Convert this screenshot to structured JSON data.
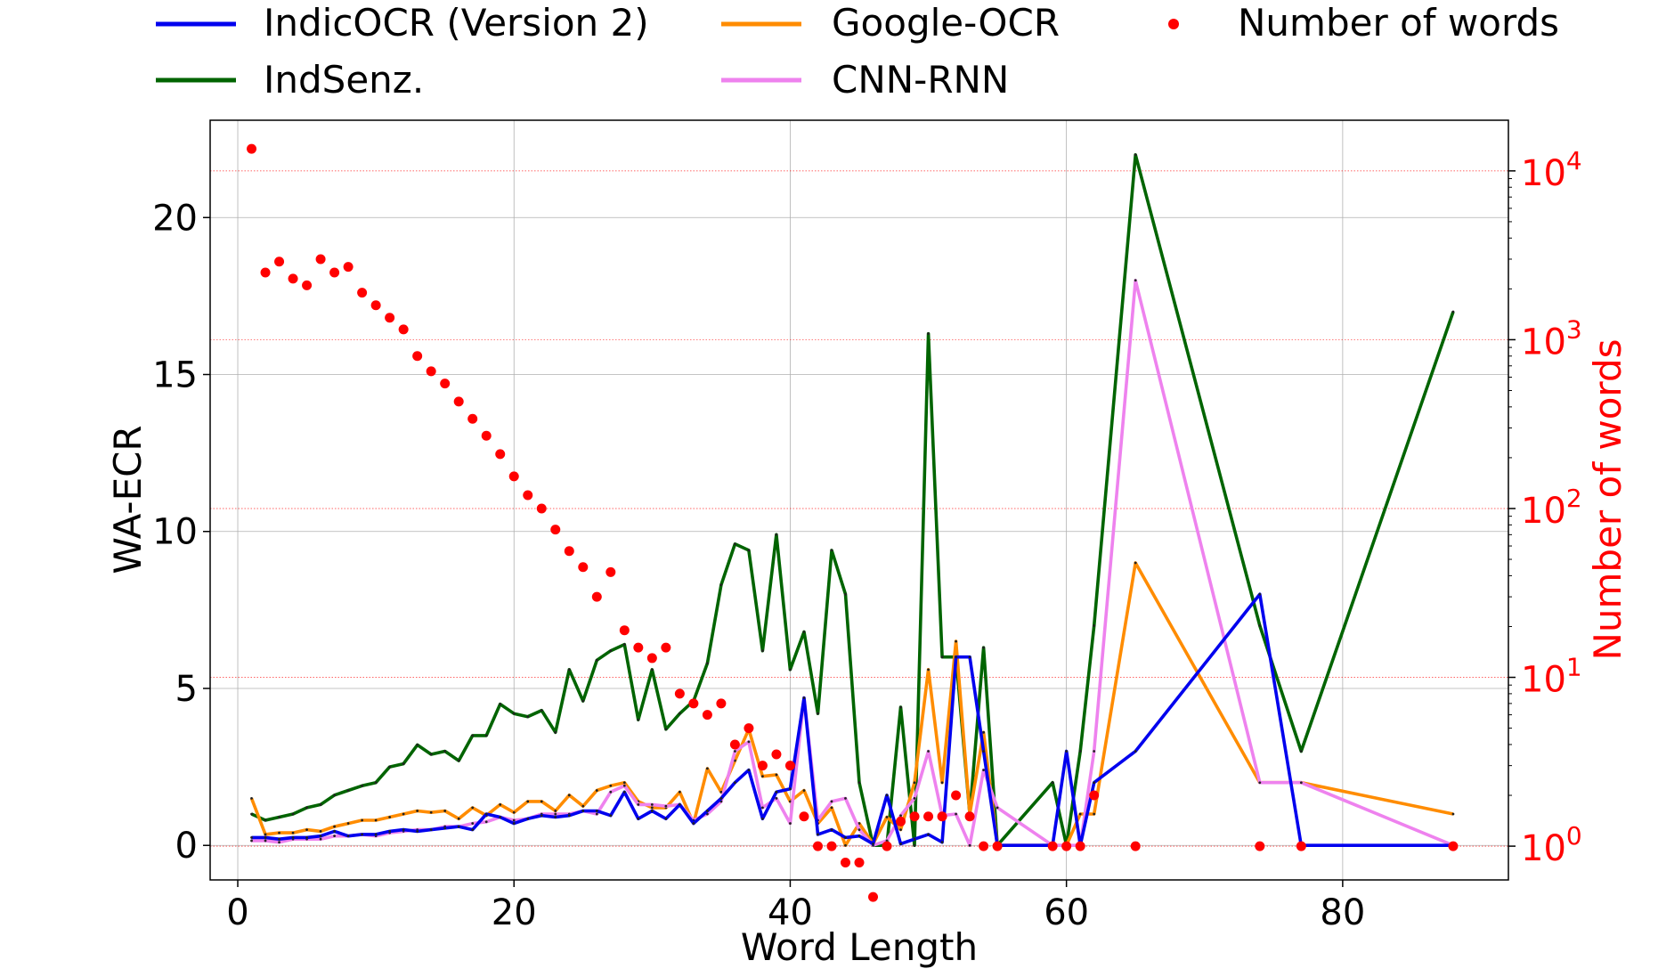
{
  "chart_data": {
    "type": "line",
    "title": "",
    "xlabel": "Word Length",
    "ylabel": "WA-ECR",
    "y2label": "Number of words",
    "xlim": [
      -2,
      92
    ],
    "ylim": [
      -1.1,
      23.1
    ],
    "y2lim_log10": [
      -0.2,
      4.3
    ],
    "y2scale": "log",
    "x_ticks": [
      "0",
      "20",
      "40",
      "60",
      "80"
    ],
    "x_tick_values": [
      0,
      20,
      40,
      60,
      80
    ],
    "y_ticks": [
      "0",
      "5",
      "10",
      "15",
      "20"
    ],
    "y_tick_values": [
      0,
      5,
      10,
      15,
      20
    ],
    "y2_ticks": [
      "10",
      "10",
      "10",
      "10",
      "10"
    ],
    "y2_tick_exponents": [
      "0",
      "1",
      "2",
      "3",
      "4"
    ],
    "y2_tick_values": [
      0,
      1,
      2,
      3,
      4
    ],
    "grid": true,
    "legend_position": "top",
    "series": [
      {
        "name": "IndicOCR (Version 2)",
        "color": "#0000ee",
        "axis": "left",
        "x": [
          1,
          2,
          3,
          4,
          5,
          6,
          7,
          8,
          9,
          10,
          11,
          12,
          13,
          14,
          15,
          16,
          17,
          18,
          19,
          20,
          21,
          22,
          23,
          24,
          25,
          26,
          27,
          28,
          29,
          30,
          31,
          32,
          33,
          34,
          35,
          36,
          37,
          38,
          39,
          40,
          41,
          42,
          43,
          44,
          45,
          46,
          47,
          48,
          49,
          50,
          51,
          52,
          53,
          54,
          55,
          59,
          60,
          61,
          62,
          65,
          74,
          77,
          88
        ],
        "y": [
          0.25,
          0.25,
          0.2,
          0.25,
          0.25,
          0.3,
          0.45,
          0.3,
          0.35,
          0.35,
          0.45,
          0.5,
          0.45,
          0.5,
          0.55,
          0.6,
          0.5,
          1.0,
          0.9,
          0.7,
          0.85,
          0.95,
          0.9,
          0.95,
          1.1,
          1.1,
          0.95,
          1.7,
          0.85,
          1.1,
          0.85,
          1.3,
          0.7,
          1.1,
          1.5,
          2.0,
          2.4,
          0.85,
          1.7,
          1.8,
          4.7,
          0.35,
          0.5,
          0.25,
          0.3,
          0.05,
          1.6,
          0.05,
          0.2,
          0.35,
          0.1,
          6.0,
          6.0,
          3.0,
          0.0,
          0.0,
          3.0,
          0.0,
          2.0,
          3.0,
          8.0,
          0.0,
          0.0
        ]
      },
      {
        "name": "IndSenz.",
        "color": "#006400",
        "axis": "left",
        "x": [
          1,
          2,
          3,
          4,
          5,
          6,
          7,
          8,
          9,
          10,
          11,
          12,
          13,
          14,
          15,
          16,
          17,
          18,
          19,
          20,
          21,
          22,
          23,
          24,
          25,
          26,
          27,
          28,
          29,
          30,
          31,
          32,
          33,
          34,
          35,
          36,
          37,
          38,
          39,
          40,
          41,
          42,
          43,
          44,
          45,
          46,
          47,
          48,
          49,
          50,
          51,
          52,
          53,
          54,
          55,
          59,
          60,
          61,
          62,
          65,
          74,
          77,
          88
        ],
        "y": [
          1.0,
          0.8,
          0.9,
          1.0,
          1.2,
          1.3,
          1.6,
          1.75,
          1.9,
          2.0,
          2.5,
          2.6,
          3.2,
          2.9,
          3.0,
          2.7,
          3.5,
          3.5,
          4.5,
          4.2,
          4.1,
          4.3,
          3.6,
          5.6,
          4.6,
          5.9,
          6.2,
          6.4,
          4.0,
          5.6,
          3.7,
          4.2,
          4.6,
          5.8,
          8.3,
          9.6,
          9.4,
          6.2,
          9.9,
          5.6,
          6.8,
          4.2,
          9.4,
          8.0,
          2.0,
          0.0,
          0.0,
          4.4,
          0.0,
          16.3,
          6.0,
          6.0,
          1.0,
          6.3,
          0.0,
          2.0,
          0.0,
          3.0,
          7.0,
          22.0,
          7.0,
          3.0,
          17.0
        ]
      },
      {
        "name": "Google-OCR",
        "color": "#ff8c00",
        "axis": "left",
        "x": [
          1,
          2,
          3,
          4,
          5,
          6,
          7,
          8,
          9,
          10,
          11,
          12,
          13,
          14,
          15,
          16,
          17,
          18,
          19,
          20,
          21,
          22,
          23,
          24,
          25,
          26,
          27,
          28,
          29,
          30,
          31,
          32,
          33,
          34,
          35,
          36,
          37,
          38,
          39,
          40,
          41,
          42,
          43,
          44,
          45,
          46,
          47,
          48,
          49,
          50,
          51,
          52,
          53,
          54,
          55,
          59,
          60,
          61,
          62,
          65,
          74,
          77,
          88
        ],
        "y": [
          1.5,
          0.35,
          0.4,
          0.4,
          0.5,
          0.45,
          0.6,
          0.7,
          0.8,
          0.8,
          0.9,
          1.0,
          1.1,
          1.05,
          1.1,
          0.85,
          1.2,
          0.95,
          1.3,
          1.05,
          1.4,
          1.4,
          1.1,
          1.6,
          1.25,
          1.75,
          1.9,
          2.0,
          1.4,
          1.2,
          1.2,
          1.7,
          0.7,
          2.45,
          1.7,
          2.7,
          3.7,
          2.2,
          2.25,
          1.4,
          1.75,
          0.7,
          1.2,
          0.0,
          0.7,
          0.05,
          0.9,
          0.5,
          2.0,
          5.6,
          2.0,
          6.5,
          1.0,
          3.6,
          0.0,
          0.0,
          0.0,
          1.0,
          1.0,
          9.0,
          2.0,
          2.0,
          1.0
        ]
      },
      {
        "name": "CNN-RNN",
        "color": "#ee82ee",
        "axis": "left",
        "x": [
          1,
          2,
          3,
          4,
          5,
          6,
          7,
          8,
          9,
          10,
          11,
          12,
          13,
          14,
          15,
          16,
          17,
          18,
          19,
          20,
          21,
          22,
          23,
          24,
          25,
          26,
          27,
          28,
          29,
          30,
          31,
          32,
          33,
          34,
          35,
          36,
          37,
          38,
          39,
          40,
          41,
          42,
          43,
          44,
          45,
          46,
          47,
          48,
          49,
          50,
          51,
          52,
          53,
          54,
          55,
          59,
          60,
          61,
          62,
          65,
          74,
          77,
          88
        ],
        "y": [
          0.15,
          0.15,
          0.1,
          0.2,
          0.2,
          0.2,
          0.3,
          0.3,
          0.35,
          0.3,
          0.4,
          0.45,
          0.5,
          0.5,
          0.6,
          0.6,
          0.7,
          0.75,
          0.9,
          0.8,
          0.85,
          1.0,
          1.0,
          1.0,
          1.1,
          1.0,
          1.7,
          1.9,
          1.3,
          1.3,
          1.25,
          1.3,
          0.8,
          1.0,
          1.4,
          3.0,
          3.3,
          1.2,
          1.5,
          0.7,
          4.7,
          0.8,
          1.4,
          1.5,
          0.5,
          0.0,
          0.15,
          0.95,
          1.5,
          3.0,
          0.95,
          1.0,
          0.0,
          2.4,
          1.2,
          0.0,
          0.0,
          0.0,
          3.0,
          18.0,
          2.0,
          2.0,
          0.0
        ]
      }
    ],
    "scatter": {
      "name": "Number of words",
      "color": "#ff0000",
      "axis": "right",
      "x": [
        1,
        2,
        3,
        4,
        5,
        6,
        7,
        8,
        9,
        10,
        11,
        12,
        13,
        14,
        15,
        16,
        17,
        18,
        19,
        20,
        21,
        22,
        23,
        24,
        25,
        26,
        27,
        28,
        29,
        30,
        31,
        32,
        33,
        34,
        35,
        36,
        37,
        38,
        39,
        40,
        41,
        42,
        43,
        44,
        45,
        46,
        47,
        48,
        49,
        50,
        51,
        52,
        53,
        54,
        55,
        59,
        60,
        61,
        62,
        65,
        74,
        77,
        88
      ],
      "y": [
        13500,
        2500,
        2900,
        2300,
        2100,
        3000,
        2500,
        2700,
        1900,
        1600,
        1350,
        1150,
        800,
        650,
        550,
        430,
        340,
        270,
        210,
        155,
        120,
        100,
        75,
        56,
        45,
        30,
        42,
        19,
        15,
        13,
        15,
        8,
        7,
        6,
        7,
        4,
        5,
        3,
        3.5,
        3,
        1.5,
        1,
        1,
        0.8,
        0.8,
        0.5,
        1,
        1.4,
        1.5,
        1.5,
        1.5,
        2,
        1.5,
        1,
        1,
        1,
        1,
        1,
        2,
        1,
        1,
        1,
        1
      ]
    }
  }
}
